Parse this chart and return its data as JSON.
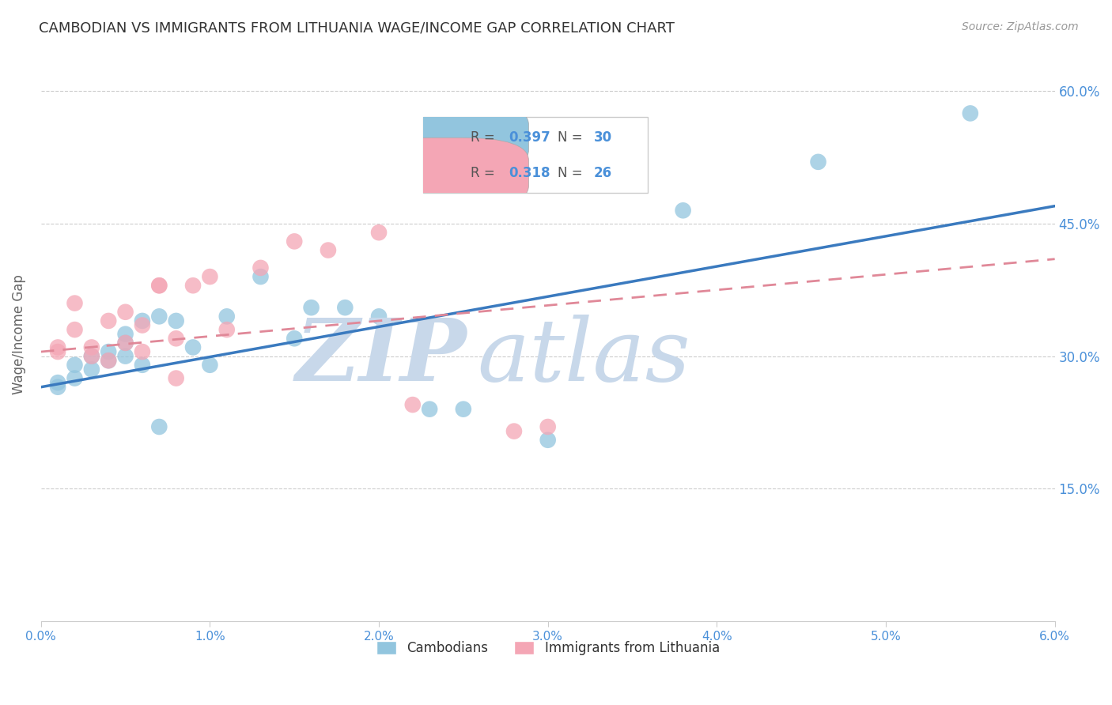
{
  "title": "CAMBODIAN VS IMMIGRANTS FROM LITHUANIA WAGE/INCOME GAP CORRELATION CHART",
  "source": "Source: ZipAtlas.com",
  "ylabel": "Wage/Income Gap",
  "xlim": [
    0.0,
    0.06
  ],
  "ylim": [
    0.0,
    0.65
  ],
  "yticks": [
    0.15,
    0.3,
    0.45,
    0.6
  ],
  "ytick_labels": [
    "15.0%",
    "30.0%",
    "45.0%",
    "60.0%"
  ],
  "xticks": [
    0.0,
    0.01,
    0.02,
    0.03,
    0.04,
    0.05,
    0.06
  ],
  "xtick_labels": [
    "0.0%",
    "1.0%",
    "2.0%",
    "3.0%",
    "4.0%",
    "5.0%",
    "6.0%"
  ],
  "blue_color": "#92c5de",
  "pink_color": "#f4a6b5",
  "trend_blue": "#3a7abf",
  "trend_pink": "#e08898",
  "R_blue": 0.397,
  "N_blue": 30,
  "R_pink": 0.318,
  "N_pink": 26,
  "blue_scatter_x": [
    0.001,
    0.001,
    0.002,
    0.002,
    0.003,
    0.003,
    0.004,
    0.004,
    0.005,
    0.005,
    0.005,
    0.006,
    0.006,
    0.007,
    0.007,
    0.008,
    0.009,
    0.01,
    0.011,
    0.013,
    0.015,
    0.016,
    0.018,
    0.02,
    0.023,
    0.025,
    0.03,
    0.038,
    0.046,
    0.055
  ],
  "blue_scatter_y": [
    0.265,
    0.27,
    0.29,
    0.275,
    0.3,
    0.285,
    0.305,
    0.295,
    0.315,
    0.3,
    0.325,
    0.29,
    0.34,
    0.345,
    0.22,
    0.34,
    0.31,
    0.29,
    0.345,
    0.39,
    0.32,
    0.355,
    0.355,
    0.345,
    0.24,
    0.24,
    0.205,
    0.465,
    0.52,
    0.575
  ],
  "pink_scatter_x": [
    0.001,
    0.001,
    0.002,
    0.002,
    0.003,
    0.003,
    0.004,
    0.004,
    0.005,
    0.005,
    0.006,
    0.006,
    0.007,
    0.007,
    0.008,
    0.008,
    0.009,
    0.01,
    0.011,
    0.013,
    0.015,
    0.017,
    0.02,
    0.022,
    0.028,
    0.03
  ],
  "pink_scatter_y": [
    0.31,
    0.305,
    0.36,
    0.33,
    0.31,
    0.3,
    0.34,
    0.295,
    0.35,
    0.315,
    0.335,
    0.305,
    0.38,
    0.38,
    0.32,
    0.275,
    0.38,
    0.39,
    0.33,
    0.4,
    0.43,
    0.42,
    0.44,
    0.245,
    0.215,
    0.22
  ],
  "blue_trend_x0": 0.0,
  "blue_trend_y0": 0.265,
  "blue_trend_x1": 0.06,
  "blue_trend_y1": 0.47,
  "pink_trend_x0": 0.0,
  "pink_trend_y0": 0.305,
  "pink_trend_x1": 0.06,
  "pink_trend_y1": 0.41,
  "watermark_zip": "ZIP",
  "watermark_atlas": "atlas",
  "watermark_color": "#c8d8ea",
  "background_color": "#ffffff",
  "axis_color": "#4a90d9",
  "title_color": "#333333",
  "grid_color": "#cccccc",
  "legend_R_label_color": "#555555",
  "legend_val_color": "#4a90d9"
}
